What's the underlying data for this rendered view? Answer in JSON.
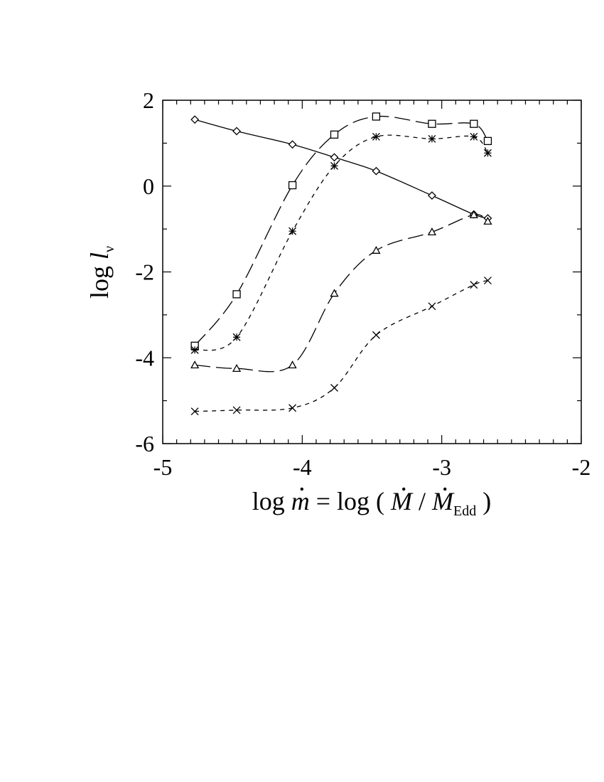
{
  "chart_data": {
    "type": "line",
    "title": "",
    "xlabel": {
      "prefix": "log ",
      "var": "m",
      "equals": " = log ( ",
      "num": "M",
      "slash": " / ",
      "den": "M",
      "den_sub": "Edd",
      "close": " )"
    },
    "ylabel": {
      "prefix": "log ",
      "var": "l",
      "sub": "ν"
    },
    "xlim": [
      -5,
      -2
    ],
    "ylim": [
      -6,
      2
    ],
    "x_ticks": [
      -5,
      -4,
      -3,
      -2
    ],
    "y_ticks": [
      -6,
      -4,
      -2,
      0,
      2
    ],
    "x_tick_labels": [
      "-5",
      "-4",
      "-3",
      "-2"
    ],
    "y_tick_labels": [
      "-6",
      "-4",
      "-2",
      "0",
      "2"
    ],
    "x_minor_step": 0.1,
    "y_minor_step": 1,
    "grid": false,
    "legend": "none",
    "series": [
      {
        "marker": "diamond",
        "dash": "solid",
        "x": [
          -4.77,
          -4.47,
          -4.07,
          -3.77,
          -3.47,
          -3.07,
          -2.77,
          -2.67
        ],
        "y": [
          1.55,
          1.28,
          0.97,
          0.67,
          0.35,
          -0.22,
          -0.66,
          -0.75
        ]
      },
      {
        "marker": "square",
        "dash": "longdash",
        "x": [
          -4.77,
          -4.47,
          -4.07,
          -3.77,
          -3.47,
          -3.07,
          -2.77,
          -2.67
        ],
        "y": [
          -3.72,
          -2.52,
          0.02,
          1.2,
          1.62,
          1.45,
          1.45,
          1.05
        ]
      },
      {
        "marker": "asterisk",
        "dash": "shortdash",
        "x": [
          -4.77,
          -4.47,
          -4.07,
          -3.77,
          -3.47,
          -3.07,
          -2.77,
          -2.67
        ],
        "y": [
          -3.82,
          -3.52,
          -1.05,
          0.47,
          1.15,
          1.1,
          1.15,
          0.77
        ]
      },
      {
        "marker": "triangle",
        "dash": "longdash",
        "x": [
          -4.77,
          -4.47,
          -4.07,
          -3.77,
          -3.47,
          -3.07,
          -2.77,
          -2.67
        ],
        "y": [
          -4.17,
          -4.25,
          -4.17,
          -2.5,
          -1.5,
          -1.07,
          -0.67,
          -0.82
        ]
      },
      {
        "marker": "cross",
        "dash": "shortdash",
        "x": [
          -4.77,
          -4.47,
          -4.07,
          -3.77,
          -3.47,
          -3.07,
          -2.77,
          -2.67
        ],
        "y": [
          -5.25,
          -5.22,
          -5.17,
          -4.7,
          -3.47,
          -2.8,
          -2.3,
          -2.2
        ]
      }
    ]
  }
}
